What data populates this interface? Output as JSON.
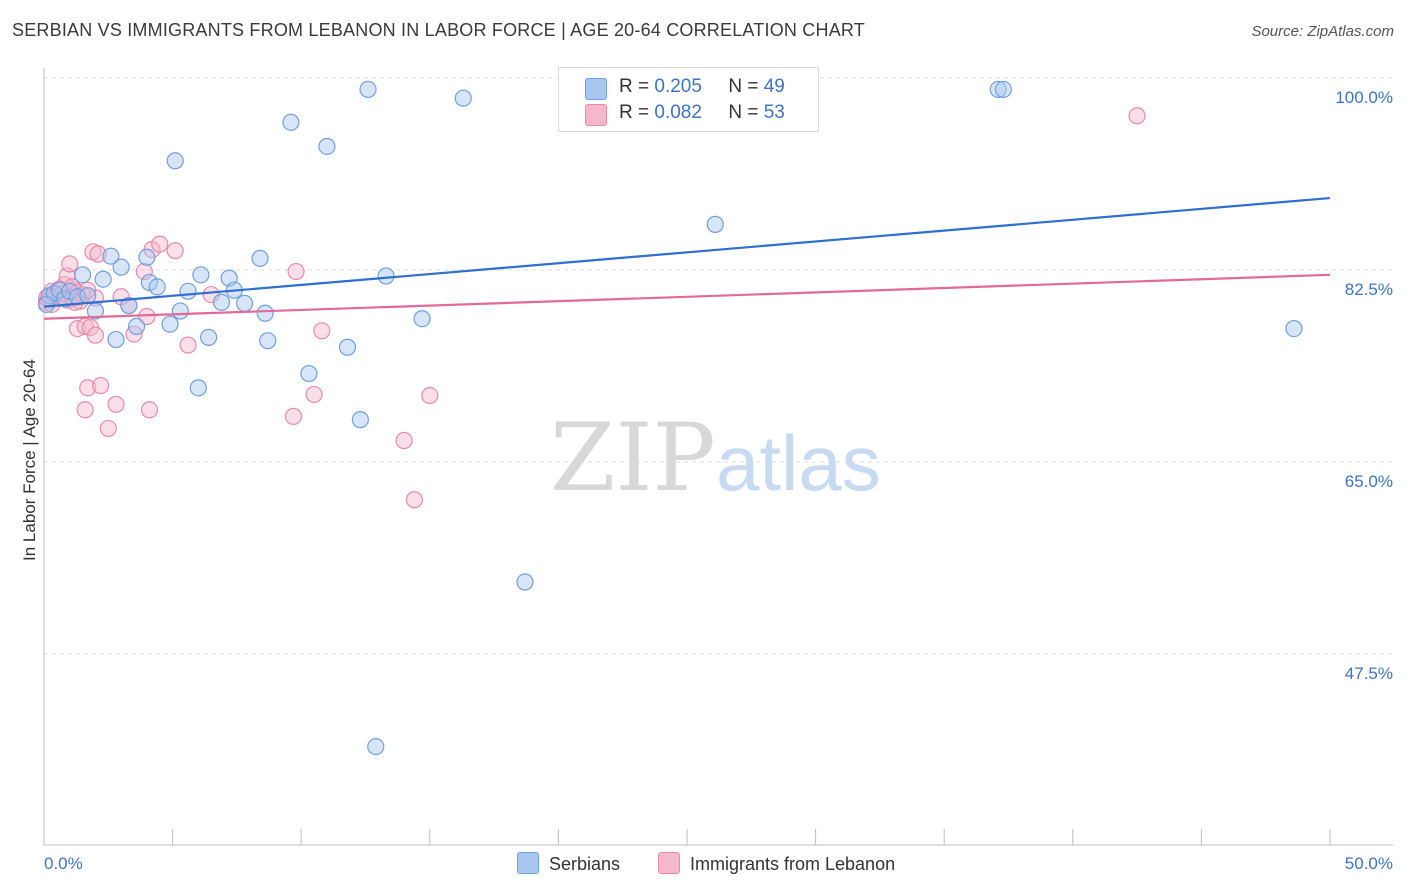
{
  "title": "SERBIAN VS IMMIGRANTS FROM LEBANON IN LABOR FORCE | AGE 20-64 CORRELATION CHART",
  "source": "Source: ZipAtlas.com",
  "watermark": {
    "zip": "ZIP",
    "atlas": "atlas"
  },
  "colors": {
    "blue_fill": "#a9c6ef",
    "blue_stroke": "#6f9fe0",
    "blue_line": "#2f6fce",
    "pink_fill": "#f5b8cb",
    "pink_stroke": "#ea8aa8",
    "pink_line": "#e06b98",
    "axis_label": "#3f73c4",
    "grid": "#dddddd"
  },
  "legend": {
    "rows": [
      {
        "r_label": "R =",
        "r_value": "0.205",
        "n_label": "N =",
        "n_value": "49"
      },
      {
        "r_label": "R =",
        "r_value": "0.082",
        "n_label": "N =",
        "n_value": "53"
      }
    ]
  },
  "bottom_legend": [
    "Serbians",
    "Immigrants from Lebanon"
  ],
  "chart_data": {
    "type": "scatter",
    "title": "SERBIAN VS IMMIGRANTS FROM LEBANON IN LABOR FORCE | AGE 20-64 CORRELATION CHART",
    "xlabel": "",
    "ylabel": "In Labor Force | Age 20-64",
    "xlim": [
      0,
      50
    ],
    "ylim": [
      31.5,
      102
    ],
    "x_tick_labels": [
      "0.0%",
      "50.0%"
    ],
    "y_ticks": [
      100.0,
      82.5,
      65.0,
      47.5
    ],
    "y_tick_labels": [
      "100.0%",
      "82.5%",
      "65.0%",
      "47.5%"
    ],
    "series": [
      {
        "name": "Serbians",
        "R": 0.205,
        "N": 49,
        "trend": {
          "x": [
            0,
            50
          ],
          "y": [
            80.8,
            90.7
          ]
        },
        "points": [
          [
            0.2,
            81.8
          ],
          [
            0.4,
            82.0
          ],
          [
            0.6,
            82.3
          ],
          [
            0.8,
            81.5
          ],
          [
            1.0,
            82.2
          ],
          [
            1.3,
            81.7
          ],
          [
            1.5,
            83.7
          ],
          [
            1.7,
            81.8
          ],
          [
            2.0,
            80.4
          ],
          [
            2.3,
            83.3
          ],
          [
            2.6,
            85.4
          ],
          [
            2.8,
            77.8
          ],
          [
            3.0,
            84.4
          ],
          [
            3.3,
            80.9
          ],
          [
            3.6,
            79.0
          ],
          [
            4.0,
            85.3
          ],
          [
            4.1,
            83.0
          ],
          [
            4.4,
            82.6
          ],
          [
            4.9,
            79.2
          ],
          [
            5.1,
            94.1
          ],
          [
            5.3,
            80.4
          ],
          [
            5.6,
            82.2
          ],
          [
            6.0,
            73.4
          ],
          [
            6.1,
            83.7
          ],
          [
            6.4,
            78.0
          ],
          [
            6.9,
            81.2
          ],
          [
            7.2,
            83.4
          ],
          [
            7.4,
            82.3
          ],
          [
            7.8,
            81.1
          ],
          [
            8.4,
            85.2
          ],
          [
            8.6,
            80.2
          ],
          [
            8.7,
            77.7
          ],
          [
            9.6,
            97.6
          ],
          [
            10.3,
            74.7
          ],
          [
            11.0,
            95.4
          ],
          [
            11.8,
            77.1
          ],
          [
            12.3,
            70.5
          ],
          [
            12.6,
            100.6
          ],
          [
            12.9,
            40.7
          ],
          [
            13.3,
            83.6
          ],
          [
            14.7,
            79.7
          ],
          [
            16.3,
            99.8
          ],
          [
            18.7,
            55.7
          ],
          [
            20.4,
            100.6
          ],
          [
            26.1,
            88.3
          ],
          [
            37.1,
            100.6
          ],
          [
            37.3,
            100.6
          ],
          [
            48.6,
            78.8
          ],
          [
            0.1,
            81.0
          ]
        ]
      },
      {
        "name": "Immigrants from Lebanon",
        "R": 0.082,
        "N": 53,
        "trend": {
          "x": [
            0,
            50
          ],
          "y": [
            79.7,
            83.7
          ]
        },
        "points": [
          [
            0.2,
            81.5
          ],
          [
            0.3,
            82.2
          ],
          [
            0.5,
            81.9
          ],
          [
            0.6,
            81.6
          ],
          [
            0.8,
            82.8
          ],
          [
            0.9,
            83.6
          ],
          [
            1.0,
            84.7
          ],
          [
            1.1,
            81.5
          ],
          [
            1.2,
            82.3
          ],
          [
            1.3,
            78.8
          ],
          [
            1.4,
            81.3
          ],
          [
            1.6,
            79.0
          ],
          [
            1.6,
            71.4
          ],
          [
            1.7,
            73.4
          ],
          [
            1.8,
            78.9
          ],
          [
            1.9,
            85.8
          ],
          [
            2.0,
            78.2
          ],
          [
            2.0,
            81.6
          ],
          [
            2.1,
            85.6
          ],
          [
            2.2,
            73.6
          ],
          [
            2.5,
            69.7
          ],
          [
            2.8,
            71.9
          ],
          [
            3.0,
            81.7
          ],
          [
            3.3,
            80.9
          ],
          [
            3.5,
            78.3
          ],
          [
            3.9,
            84.0
          ],
          [
            4.0,
            79.9
          ],
          [
            4.1,
            71.4
          ],
          [
            4.2,
            86.0
          ],
          [
            4.5,
            86.5
          ],
          [
            5.1,
            85.9
          ],
          [
            5.6,
            77.3
          ],
          [
            6.5,
            81.9
          ],
          [
            9.7,
            70.8
          ],
          [
            9.8,
            84.0
          ],
          [
            10.5,
            72.8
          ],
          [
            10.8,
            78.6
          ],
          [
            14.0,
            68.6
          ],
          [
            14.4,
            63.2
          ],
          [
            15.0,
            72.7
          ],
          [
            42.5,
            98.2
          ],
          [
            0.1,
            81.2
          ],
          [
            0.4,
            81.8
          ],
          [
            0.7,
            82.0
          ],
          [
            0.9,
            81.4
          ],
          [
            1.1,
            82.6
          ],
          [
            1.3,
            82.1
          ],
          [
            1.5,
            81.9
          ],
          [
            0.3,
            81.0
          ],
          [
            0.6,
            82.4
          ],
          [
            1.2,
            81.2
          ],
          [
            0.1,
            81.6
          ],
          [
            1.7,
            82.3
          ]
        ]
      }
    ]
  }
}
